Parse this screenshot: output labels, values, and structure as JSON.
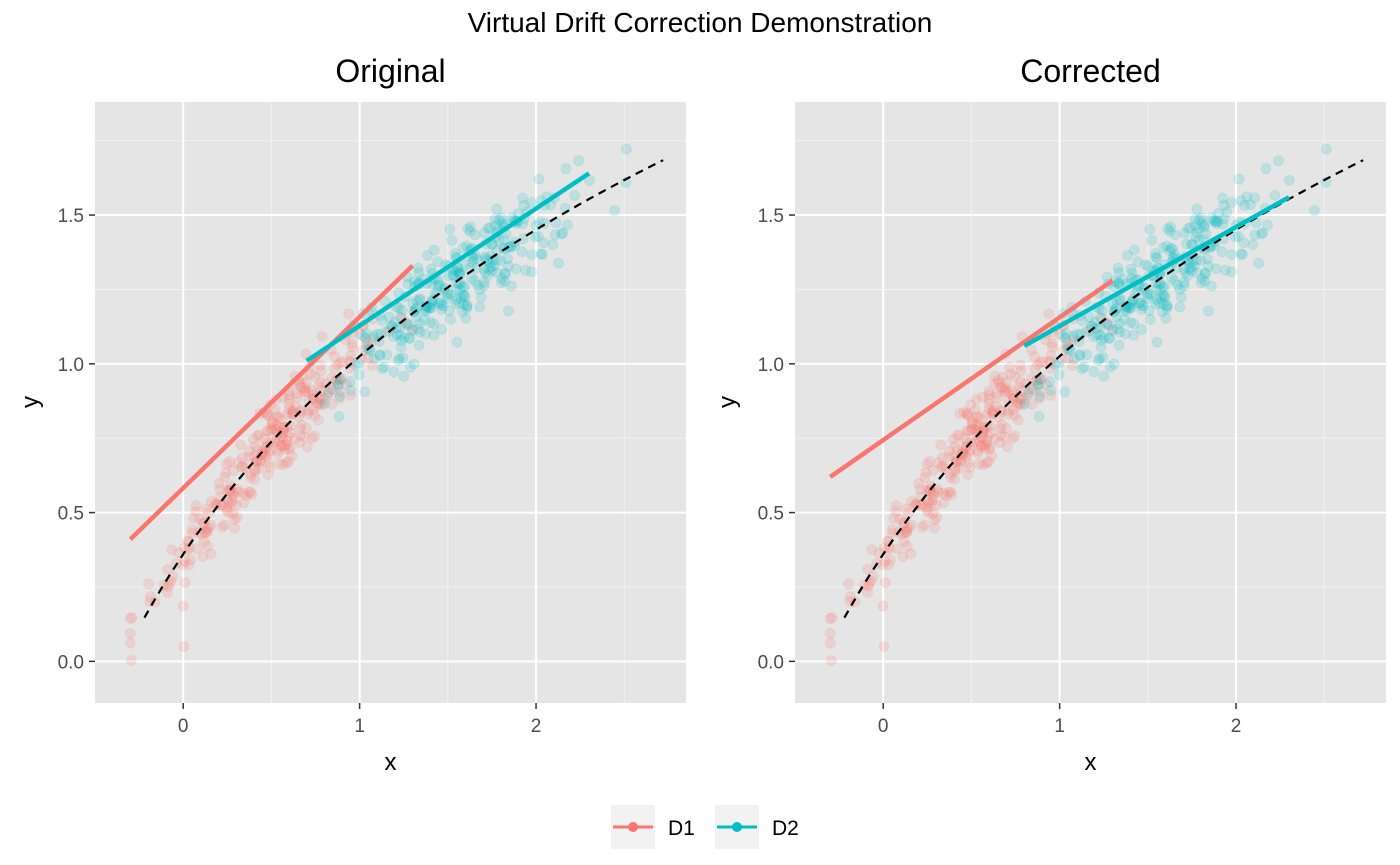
{
  "figure": {
    "title": "Virtual Drift Correction Demonstration",
    "colors": {
      "D1": "#F8766D",
      "D2": "#00BFC4",
      "panel_bg": "#E5E5E5",
      "grid": "#FFFFFF",
      "reference": "#000000"
    }
  },
  "legend": {
    "position": "bottom",
    "items": [
      {
        "label": "D1",
        "color": "#F8766D"
      },
      {
        "label": "D2",
        "color": "#00BFC4"
      }
    ]
  },
  "chart_data": [
    {
      "type": "scatter",
      "title": "Original",
      "xlabel": "x",
      "ylabel": "y",
      "xlim": [
        -0.5,
        2.85
      ],
      "ylim": [
        -0.14,
        1.88
      ],
      "xticks": [
        0,
        1,
        2
      ],
      "yticks": [
        0.0,
        0.5,
        1.0,
        1.5
      ],
      "ytick_labels": [
        "0.0",
        "0.5",
        "1.0",
        "1.5"
      ],
      "grid": true,
      "reference_curve": {
        "style": "dashed",
        "x_range": [
          -0.22,
          2.72
        ],
        "form": "log1p(x + 0.35) * 1.2"
      },
      "series": [
        {
          "name": "D1",
          "color": "#F8766D",
          "x_range": [
            -0.3,
            1.3
          ],
          "fit": {
            "x": [
              -0.3,
              1.3
            ],
            "y": [
              0.41,
              1.33
            ]
          }
        },
        {
          "name": "D2",
          "color": "#00BFC4",
          "x_range": [
            0.7,
            2.7
          ],
          "fit": {
            "x": [
              0.7,
              2.3
            ],
            "y": [
              1.01,
              1.64
            ]
          }
        }
      ]
    },
    {
      "type": "scatter",
      "title": "Corrected",
      "xlabel": "x",
      "ylabel": "y",
      "xlim": [
        -0.5,
        2.85
      ],
      "ylim": [
        -0.14,
        1.88
      ],
      "xticks": [
        0,
        1,
        2
      ],
      "yticks": [
        0.0,
        0.5,
        1.0,
        1.5
      ],
      "ytick_labels": [
        "0.0",
        "0.5",
        "1.0",
        "1.5"
      ],
      "grid": true,
      "reference_curve": {
        "style": "dashed",
        "x_range": [
          -0.22,
          2.72
        ],
        "form": "log1p(x + 0.35) * 1.2"
      },
      "series": [
        {
          "name": "D1",
          "color": "#F8766D",
          "x_range": [
            -0.3,
            1.3
          ],
          "fit": {
            "x": [
              -0.3,
              1.3
            ],
            "y": [
              0.62,
              1.28
            ]
          }
        },
        {
          "name": "D2",
          "color": "#00BFC4",
          "x_range": [
            0.7,
            2.7
          ],
          "fit": {
            "x": [
              0.8,
              2.3
            ],
            "y": [
              1.06,
              1.56
            ]
          }
        }
      ]
    }
  ]
}
